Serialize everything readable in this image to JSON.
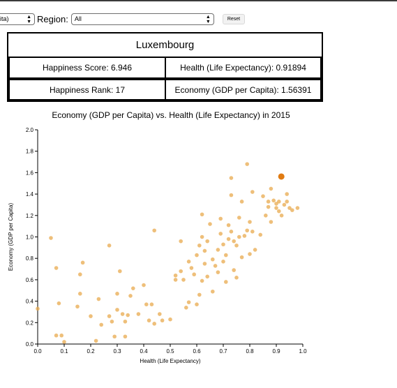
{
  "controls": {
    "first_select_value": "pita)",
    "region_label": "Region:",
    "region_value": "All",
    "reset_label": "Reset"
  },
  "card": {
    "country": "Luxembourg",
    "happiness_score": "Happiness Score: 6.946",
    "health": "Health (Life Expectancy): 0.91894",
    "happiness_rank": "Happiness Rank: 17",
    "economy": "Economy (GDP per Capita): 1.56391"
  },
  "chart": {
    "title": "Economy (GDP per Capita) vs. Health (Life Expectancy) in 2015"
  },
  "colors": {
    "point": "#e8a94e",
    "highlight": "#e07b12"
  },
  "chart_data": {
    "type": "scatter",
    "title": "Economy (GDP per Capita) vs. Health (Life Expectancy) in 2015",
    "xlabel": "Health (Life Expectancy)",
    "ylabel": "Economy (GDP per Capita)",
    "xlim": [
      0,
      1.0
    ],
    "ylim": [
      0,
      2.0
    ],
    "xticks": [
      "0.0",
      "0.1",
      "0.2",
      "0.3",
      "0.4",
      "0.5",
      "0.6",
      "0.7",
      "0.8",
      "0.9",
      "1.0"
    ],
    "yticks": [
      "0.0",
      "0.2",
      "0.4",
      "0.6",
      "0.8",
      "1.0",
      "1.2",
      "1.4",
      "1.6",
      "1.8",
      "2.0"
    ],
    "highlight": {
      "name": "Luxembourg",
      "x": 0.91894,
      "y": 1.56391
    },
    "points": [
      {
        "x": 0.0,
        "y": 0.33
      },
      {
        "x": 0.05,
        "y": 0.99
      },
      {
        "x": 0.07,
        "y": 0.08
      },
      {
        "x": 0.07,
        "y": 0.71
      },
      {
        "x": 0.08,
        "y": 0.38
      },
      {
        "x": 0.09,
        "y": 0.08
      },
      {
        "x": 0.1,
        "y": 0.02
      },
      {
        "x": 0.15,
        "y": 0.35
      },
      {
        "x": 0.16,
        "y": 0.47
      },
      {
        "x": 0.16,
        "y": 0.65
      },
      {
        "x": 0.17,
        "y": 0.76
      },
      {
        "x": 0.2,
        "y": 0.26
      },
      {
        "x": 0.22,
        "y": 0.03
      },
      {
        "x": 0.23,
        "y": 0.42
      },
      {
        "x": 0.24,
        "y": 0.18
      },
      {
        "x": 0.27,
        "y": 0.26
      },
      {
        "x": 0.27,
        "y": 0.92
      },
      {
        "x": 0.28,
        "y": 0.21
      },
      {
        "x": 0.29,
        "y": 0.07
      },
      {
        "x": 0.3,
        "y": 0.32
      },
      {
        "x": 0.3,
        "y": 0.47
      },
      {
        "x": 0.31,
        "y": 0.68
      },
      {
        "x": 0.32,
        "y": 0.28
      },
      {
        "x": 0.33,
        "y": 0.21
      },
      {
        "x": 0.33,
        "y": 0.07
      },
      {
        "x": 0.34,
        "y": 0.27
      },
      {
        "x": 0.35,
        "y": 0.45
      },
      {
        "x": 0.36,
        "y": 0.52
      },
      {
        "x": 0.38,
        "y": 0.28
      },
      {
        "x": 0.4,
        "y": 0.55
      },
      {
        "x": 0.41,
        "y": 0.37
      },
      {
        "x": 0.42,
        "y": 0.22
      },
      {
        "x": 0.43,
        "y": 0.37
      },
      {
        "x": 0.44,
        "y": 0.19
      },
      {
        "x": 0.44,
        "y": 1.06
      },
      {
        "x": 0.46,
        "y": 0.28
      },
      {
        "x": 0.47,
        "y": 0.22
      },
      {
        "x": 0.5,
        "y": 0.23
      },
      {
        "x": 0.52,
        "y": 0.6
      },
      {
        "x": 0.52,
        "y": 0.64
      },
      {
        "x": 0.54,
        "y": 0.96
      },
      {
        "x": 0.54,
        "y": 0.68
      },
      {
        "x": 0.55,
        "y": 0.6
      },
      {
        "x": 0.56,
        "y": 0.34
      },
      {
        "x": 0.57,
        "y": 0.39
      },
      {
        "x": 0.57,
        "y": 0.77
      },
      {
        "x": 0.58,
        "y": 0.71
      },
      {
        "x": 0.59,
        "y": 0.65
      },
      {
        "x": 0.6,
        "y": 0.37
      },
      {
        "x": 0.6,
        "y": 0.83
      },
      {
        "x": 0.61,
        "y": 0.46
      },
      {
        "x": 0.61,
        "y": 0.92
      },
      {
        "x": 0.62,
        "y": 0.59
      },
      {
        "x": 0.62,
        "y": 1.0
      },
      {
        "x": 0.62,
        "y": 1.21
      },
      {
        "x": 0.63,
        "y": 0.75
      },
      {
        "x": 0.63,
        "y": 0.87
      },
      {
        "x": 0.64,
        "y": 0.63
      },
      {
        "x": 0.64,
        "y": 0.96
      },
      {
        "x": 0.65,
        "y": 1.12
      },
      {
        "x": 0.66,
        "y": 0.49
      },
      {
        "x": 0.66,
        "y": 0.79
      },
      {
        "x": 0.67,
        "y": 0.73
      },
      {
        "x": 0.68,
        "y": 0.67
      },
      {
        "x": 0.68,
        "y": 0.88
      },
      {
        "x": 0.69,
        "y": 1.03
      },
      {
        "x": 0.69,
        "y": 1.17
      },
      {
        "x": 0.7,
        "y": 0.77
      },
      {
        "x": 0.7,
        "y": 0.93
      },
      {
        "x": 0.71,
        "y": 0.58
      },
      {
        "x": 0.71,
        "y": 0.83
      },
      {
        "x": 0.72,
        "y": 0.98
      },
      {
        "x": 0.72,
        "y": 1.11
      },
      {
        "x": 0.73,
        "y": 1.05
      },
      {
        "x": 0.73,
        "y": 1.39
      },
      {
        "x": 0.73,
        "y": 1.55
      },
      {
        "x": 0.74,
        "y": 0.69
      },
      {
        "x": 0.74,
        "y": 0.96
      },
      {
        "x": 0.75,
        "y": 0.62
      },
      {
        "x": 0.75,
        "y": 0.92
      },
      {
        "x": 0.76,
        "y": 1.0
      },
      {
        "x": 0.76,
        "y": 1.18
      },
      {
        "x": 0.77,
        "y": 1.33
      },
      {
        "x": 0.77,
        "y": 0.81
      },
      {
        "x": 0.78,
        "y": 1.01
      },
      {
        "x": 0.79,
        "y": 1.06
      },
      {
        "x": 0.79,
        "y": 1.68
      },
      {
        "x": 0.8,
        "y": 0.84
      },
      {
        "x": 0.8,
        "y": 1.14
      },
      {
        "x": 0.81,
        "y": 1.42
      },
      {
        "x": 0.81,
        "y": 1.05
      },
      {
        "x": 0.82,
        "y": 0.88
      },
      {
        "x": 0.84,
        "y": 1.02
      },
      {
        "x": 0.85,
        "y": 1.38
      },
      {
        "x": 0.86,
        "y": 1.2
      },
      {
        "x": 0.87,
        "y": 1.28
      },
      {
        "x": 0.87,
        "y": 1.33
      },
      {
        "x": 0.88,
        "y": 1.45
      },
      {
        "x": 0.88,
        "y": 1.14
      },
      {
        "x": 0.89,
        "y": 1.34
      },
      {
        "x": 0.9,
        "y": 1.27
      },
      {
        "x": 0.9,
        "y": 1.31
      },
      {
        "x": 0.91,
        "y": 1.24
      },
      {
        "x": 0.91,
        "y": 1.33
      },
      {
        "x": 0.92,
        "y": 1.2
      },
      {
        "x": 0.93,
        "y": 1.3
      },
      {
        "x": 0.94,
        "y": 1.4
      },
      {
        "x": 0.94,
        "y": 1.33
      },
      {
        "x": 0.95,
        "y": 1.27
      },
      {
        "x": 0.96,
        "y": 1.25
      },
      {
        "x": 0.98,
        "y": 1.27
      }
    ]
  }
}
